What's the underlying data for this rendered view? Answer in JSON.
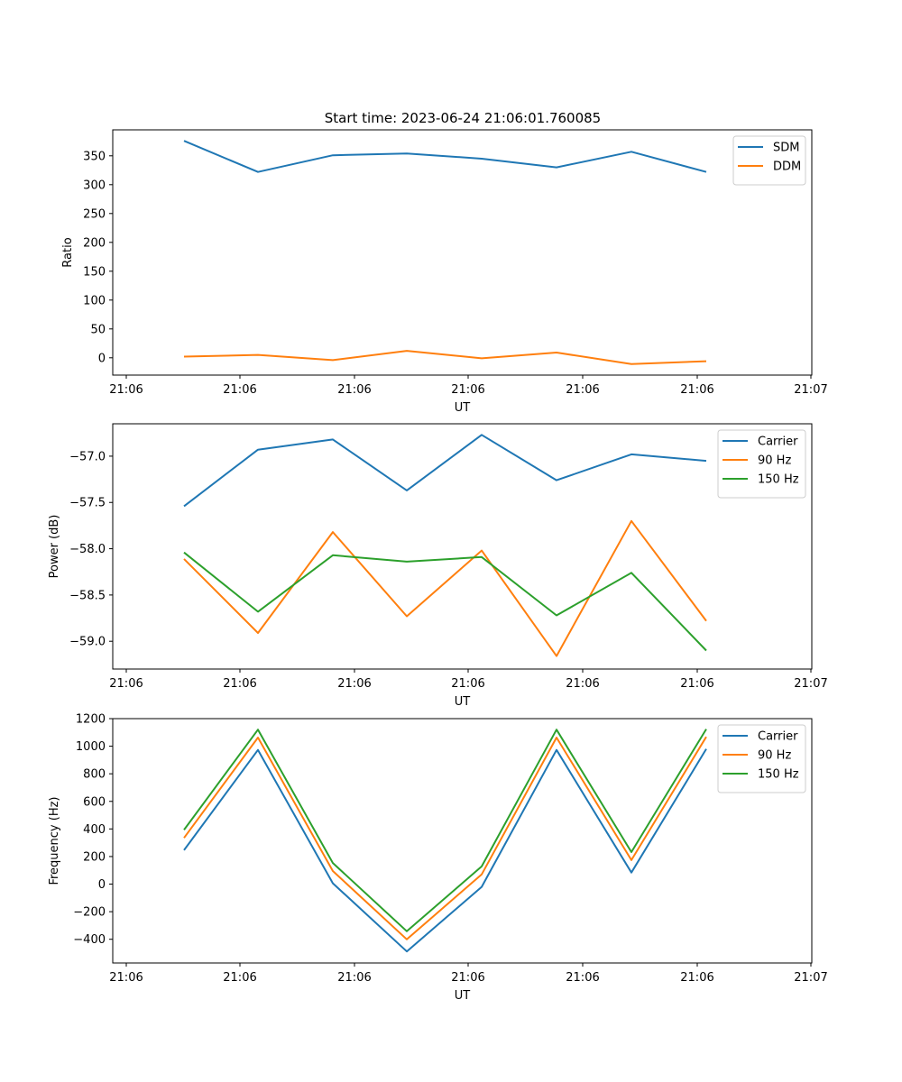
{
  "page": {
    "title": "Start time: 2023-06-24 21:06:01.760085"
  },
  "colors": {
    "blue": "#1f77b4",
    "orange": "#ff7f0e",
    "green": "#2ca02c"
  },
  "chart_data": [
    {
      "type": "line",
      "title": "Start time: 2023-06-24 21:06:01.760085",
      "xlabel": "UT",
      "ylabel": "Ratio",
      "x_tick_labels": [
        "21:06",
        "21:06",
        "21:06",
        "21:06",
        "21:06",
        "21:06",
        "21:07"
      ],
      "y_ticks": [
        0,
        50,
        100,
        150,
        200,
        250,
        300,
        350
      ],
      "ylim": [
        -30,
        395
      ],
      "legend_position": "top-right",
      "series": [
        {
          "name": "SDM",
          "color": "#1f77b4",
          "values": [
            376,
            322,
            351,
            354,
            345,
            330,
            357,
            322
          ]
        },
        {
          "name": "DDM",
          "color": "#ff7f0e",
          "values": [
            2,
            5,
            -4,
            12,
            -1,
            9,
            -11,
            -6
          ]
        }
      ]
    },
    {
      "type": "line",
      "xlabel": "UT",
      "ylabel": "Power (dB)",
      "x_tick_labels": [
        "21:06",
        "21:06",
        "21:06",
        "21:06",
        "21:06",
        "21:06",
        "21:07"
      ],
      "y_ticks": [
        -57.0,
        -57.5,
        -58.0,
        -58.5,
        -59.0
      ],
      "y_tick_labels": [
        "−57.0",
        "−57.5",
        "−58.0",
        "−58.5",
        "−59.0"
      ],
      "ylim": [
        -59.3,
        -56.65
      ],
      "legend_position": "top-right",
      "series": [
        {
          "name": "Carrier",
          "color": "#1f77b4",
          "values": [
            -57.54,
            -56.93,
            -56.82,
            -57.37,
            -56.77,
            -57.26,
            -56.98,
            -57.05
          ]
        },
        {
          "name": "90 Hz",
          "color": "#ff7f0e",
          "values": [
            -58.11,
            -58.91,
            -57.82,
            -58.73,
            -58.02,
            -59.16,
            -57.7,
            -58.78
          ]
        },
        {
          "name": "150 Hz",
          "color": "#2ca02c",
          "values": [
            -58.04,
            -58.68,
            -58.07,
            -58.14,
            -58.09,
            -58.72,
            -58.26,
            -59.1
          ]
        }
      ]
    },
    {
      "type": "line",
      "xlabel": "UT",
      "ylabel": "Frequency (Hz)",
      "x_tick_labels": [
        "21:06",
        "21:06",
        "21:06",
        "21:06",
        "21:06",
        "21:06",
        "21:07"
      ],
      "y_ticks": [
        -400,
        -200,
        0,
        200,
        400,
        600,
        800,
        1000,
        1200
      ],
      "y_tick_labels": [
        "−400",
        "−200",
        "0",
        "200",
        "400",
        "600",
        "800",
        "1000",
        "1200"
      ],
      "ylim": [
        -572,
        1200
      ],
      "legend_position": "top-right",
      "series": [
        {
          "name": "Carrier",
          "color": "#1f77b4",
          "values": [
            246,
            973,
            6,
            -488,
            -20,
            973,
            84,
            980
          ]
        },
        {
          "name": "90 Hz",
          "color": "#ff7f0e",
          "values": [
            335,
            1063,
            95,
            -401,
            70,
            1063,
            174,
            1068
          ]
        },
        {
          "name": "150 Hz",
          "color": "#2ca02c",
          "values": [
            393,
            1120,
            153,
            -342,
            128,
            1120,
            232,
            1124
          ]
        }
      ]
    }
  ]
}
